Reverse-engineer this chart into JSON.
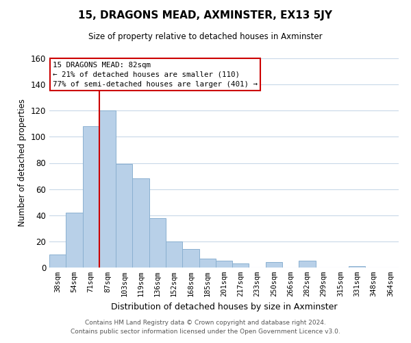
{
  "title": "15, DRAGONS MEAD, AXMINSTER, EX13 5JY",
  "subtitle": "Size of property relative to detached houses in Axminster",
  "xlabel": "Distribution of detached houses by size in Axminster",
  "ylabel": "Number of detached properties",
  "bar_labels": [
    "38sqm",
    "54sqm",
    "71sqm",
    "87sqm",
    "103sqm",
    "119sqm",
    "136sqm",
    "152sqm",
    "168sqm",
    "185sqm",
    "201sqm",
    "217sqm",
    "233sqm",
    "250sqm",
    "266sqm",
    "282sqm",
    "299sqm",
    "315sqm",
    "331sqm",
    "348sqm",
    "364sqm"
  ],
  "bar_heights": [
    10,
    42,
    108,
    120,
    79,
    68,
    38,
    20,
    14,
    7,
    5,
    3,
    0,
    4,
    0,
    5,
    0,
    0,
    1,
    0,
    0
  ],
  "bar_color": "#b8d0e8",
  "bar_edge_color": "#8ab0d0",
  "vline_color": "#cc0000",
  "ylim": [
    0,
    160
  ],
  "yticks": [
    0,
    20,
    40,
    60,
    80,
    100,
    120,
    140,
    160
  ],
  "annotation_title": "15 DRAGONS MEAD: 82sqm",
  "annotation_line1": "← 21% of detached houses are smaller (110)",
  "annotation_line2": "77% of semi-detached houses are larger (401) →",
  "footer_line1": "Contains HM Land Registry data © Crown copyright and database right 2024.",
  "footer_line2": "Contains public sector information licensed under the Open Government Licence v3.0.",
  "background_color": "#ffffff",
  "grid_color": "#c8d8e8"
}
